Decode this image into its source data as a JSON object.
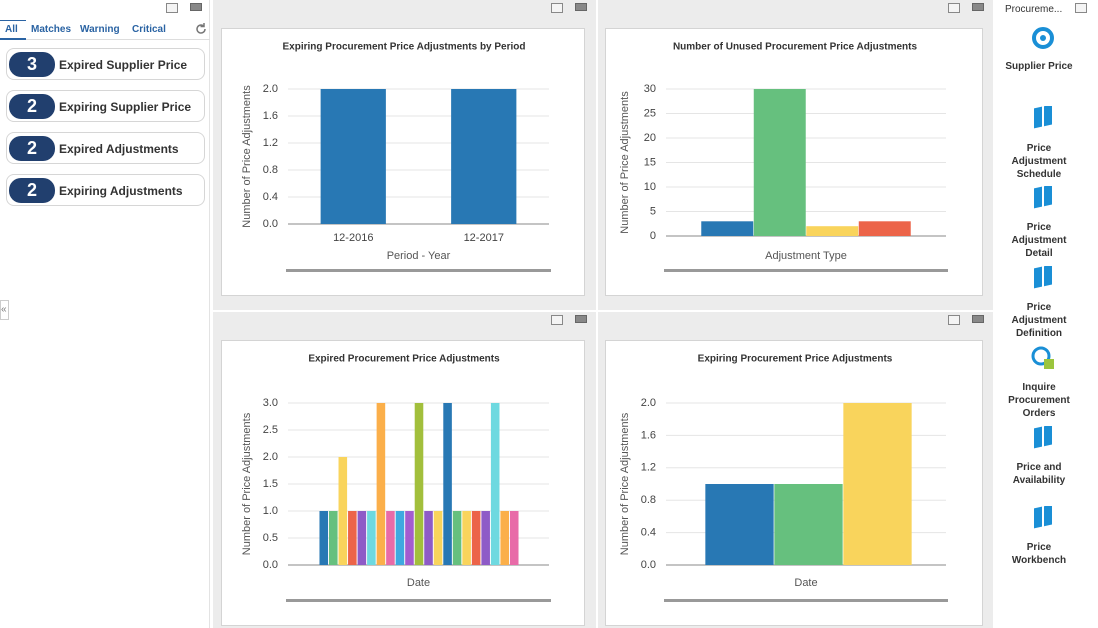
{
  "tabs": [
    "All",
    "Matches",
    "Warning",
    "Critical"
  ],
  "alerts": [
    {
      "count": 3,
      "label": "Expired Supplier Price"
    },
    {
      "count": 2,
      "label": "Expiring Supplier Price"
    },
    {
      "count": 2,
      "label": "Expired Adjustments"
    },
    {
      "count": 2,
      "label": "Expiring Adjustments"
    }
  ],
  "chart_data": [
    {
      "type": "bar",
      "title": "Expiring Procurement Price Adjustments by Period",
      "y_label": "Number of Price Adjustments",
      "x_label": "Period - Year",
      "categories": [
        "12-2016",
        "12-2017"
      ],
      "values": [
        2,
        2
      ],
      "colors": [
        "#2878b4",
        "#2878b4"
      ],
      "ylim": [
        0,
        2
      ],
      "yticks": [
        {
          "value": 0,
          "label": "0.0"
        },
        {
          "value": 0.4,
          "label": "0.4"
        },
        {
          "value": 0.8,
          "label": "0.8"
        },
        {
          "value": 1.2,
          "label": "1.2"
        },
        {
          "value": 1.6,
          "label": "1.6"
        },
        {
          "value": 2,
          "label": "2.0"
        }
      ],
      "grid": true
    },
    {
      "type": "bar",
      "title": "Number of Unused Procurement Price Adjustments",
      "y_label": "Number of Price Adjustments",
      "x_label": "Adjustment Type",
      "values": [
        3,
        30,
        2,
        3
      ],
      "colors": [
        "#2878b4",
        "#66c07e",
        "#f9d45c",
        "#ec6449"
      ],
      "ylim": [
        0,
        30
      ],
      "yticks": [
        0,
        5,
        10,
        15,
        20,
        25,
        30
      ],
      "grid": true
    },
    {
      "type": "bar",
      "title": "Expired Procurement Price Adjustments",
      "y_label": "Number of Price Adjustments",
      "x_label": "Date",
      "values": [
        1,
        1,
        2,
        1,
        1,
        1,
        3,
        1,
        1,
        1,
        3,
        1,
        1,
        3,
        1,
        1,
        1,
        1,
        3,
        1,
        1
      ],
      "colors": [
        "#2878b4",
        "#66c07e",
        "#f9d45c",
        "#ec6449",
        "#8e5bc7",
        "#6ed9e0",
        "#fbaf4a",
        "#e86ba8",
        "#3fa9e0",
        "#a35ccf",
        "#a2bf3c",
        "#8e5bc7",
        "#f9d45c",
        "#2878b4",
        "#66c07e",
        "#f9d45c",
        "#ec6449",
        "#8e5bc7",
        "#6ed9e0",
        "#fbaf4a",
        "#e86ba8"
      ],
      "ylim": [
        0,
        3
      ],
      "yticks": [
        {
          "value": 0,
          "label": "0.0"
        },
        {
          "value": 0.5,
          "label": "0.5"
        },
        {
          "value": 1,
          "label": "1.0"
        },
        {
          "value": 1.5,
          "label": "1.5"
        },
        {
          "value": 2,
          "label": "2.0"
        },
        {
          "value": 2.5,
          "label": "2.5"
        },
        {
          "value": 3,
          "label": "3.0"
        }
      ],
      "grid": true
    },
    {
      "type": "bar",
      "title": "Expiring Procurement Price Adjustments",
      "y_label": "Number of Price Adjustments",
      "x_label": "Date",
      "values": [
        1,
        1,
        2
      ],
      "colors": [
        "#2878b4",
        "#66c07e",
        "#f9d45c"
      ],
      "ylim": [
        0,
        2
      ],
      "yticks": [
        {
          "value": 0,
          "label": "0.0"
        },
        {
          "value": 0.4,
          "label": "0.4"
        },
        {
          "value": 0.8,
          "label": "0.8"
        },
        {
          "value": 1.2,
          "label": "1.2"
        },
        {
          "value": 1.6,
          "label": "1.6"
        },
        {
          "value": 2,
          "label": "2.0"
        }
      ],
      "grid": true
    }
  ],
  "side_panel": {
    "title": "Procureme...",
    "links": [
      "Supplier Price",
      "Price Adjustment Schedule",
      "Price Adjustment Detail",
      "Price Adjustment Definition",
      "Inquire Procurement Orders",
      "Price and Availability",
      "Price Workbench"
    ]
  }
}
